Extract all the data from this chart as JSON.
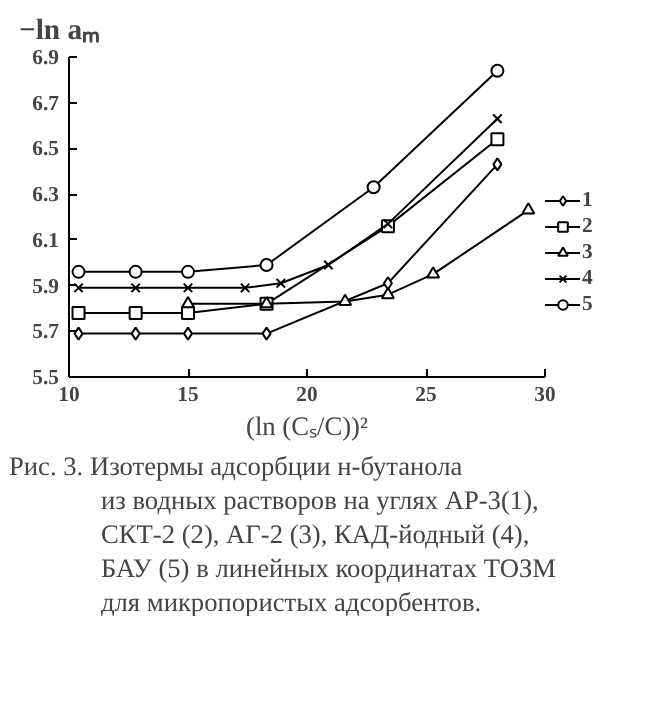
{
  "chart_data": {
    "type": "line",
    "xlabel": "(ln (Cₛ/C))²",
    "ylabel": "−ln aₘ",
    "xlim": [
      10,
      30
    ],
    "xticks": [
      10,
      15,
      20,
      25,
      30
    ],
    "ylim": [
      5.5,
      6.9
    ],
    "yticks": [
      5.5,
      5.7,
      5.9,
      6.1,
      6.3,
      6.5,
      6.7,
      6.9
    ],
    "grid": false,
    "legend": "right",
    "series": [
      {
        "name": "1",
        "color": "#000000",
        "marker": "diamond",
        "x": [
          10.4,
          12.8,
          15,
          18.3,
          23.4,
          28
        ],
        "values": [
          5.69,
          5.69,
          5.69,
          5.69,
          5.91,
          6.43
        ]
      },
      {
        "name": "2",
        "color": "#000000",
        "marker": "square",
        "x": [
          10.4,
          12.8,
          15,
          18.3,
          23.4,
          28
        ],
        "values": [
          5.78,
          5.78,
          5.78,
          5.82,
          6.16,
          6.54
        ]
      },
      {
        "name": "3",
        "color": "#000000",
        "marker": "triangle",
        "x": [
          15,
          18.3,
          21.6,
          23.4,
          25.3,
          29.3
        ],
        "values": [
          5.82,
          5.82,
          5.83,
          5.86,
          5.95,
          6.23
        ]
      },
      {
        "name": "4",
        "color": "#000000",
        "marker": "cross",
        "x": [
          10.4,
          12.8,
          15,
          17.4,
          18.9,
          20.9,
          23.4,
          28
        ],
        "values": [
          5.89,
          5.89,
          5.89,
          5.89,
          5.91,
          5.99,
          6.17,
          6.63
        ]
      },
      {
        "name": "5",
        "color": "#000000",
        "marker": "circle",
        "x": [
          10.4,
          12.8,
          15,
          18.3,
          22.8,
          28
        ],
        "values": [
          5.96,
          5.96,
          5.96,
          5.99,
          6.33,
          6.84
        ]
      }
    ],
    "annotations": [
      "Рис. 3. Изотермы адсорбции н-бутанола из водных растворов на углях АР-3(1), СКТ-2 (2), АГ-2 (3), КАД-йодный (4), БАУ (5) в линейных координатах ТОЗМ для микропористых адсорбентов."
    ]
  }
}
